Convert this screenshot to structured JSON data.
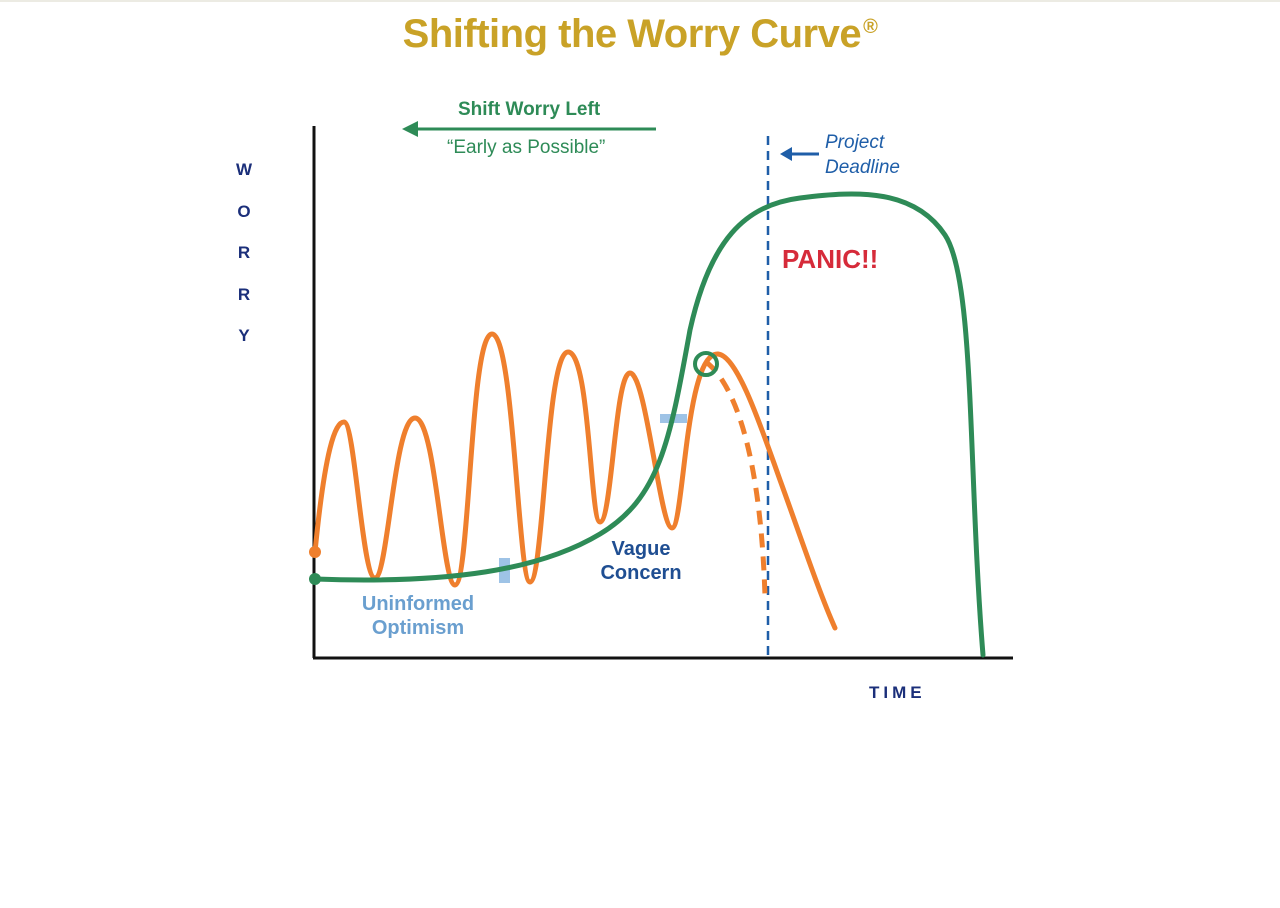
{
  "title": {
    "text": "Shifting the Worry Curve",
    "mark": "®"
  },
  "axes": {
    "y_letters": [
      "W",
      "O",
      "R",
      "R",
      "Y"
    ],
    "x_label": "TIME"
  },
  "annotations": {
    "shift_title": "Shift Worry Left",
    "shift_subtitle": "“Early as Possible”",
    "deadline_line1": "Project",
    "deadline_line2": "Deadline",
    "panic": "PANIC!!",
    "vague_line1": "Vague",
    "vague_line2": "Concern",
    "uninformed_line1": "Uninformed",
    "uninformed_line2": "Optimism"
  },
  "colors": {
    "title": "#c9a227",
    "axis_text": "#1b2f7a",
    "green_curve": "#2e8b57",
    "orange_curve": "#ef7f2d",
    "deadline": "#1f5ea8",
    "panic": "#d62b3a",
    "vague": "#1f4e92",
    "uninformed": "#6a9fcf",
    "marker": "#9ec3e6",
    "axis_line": "#111111"
  }
}
